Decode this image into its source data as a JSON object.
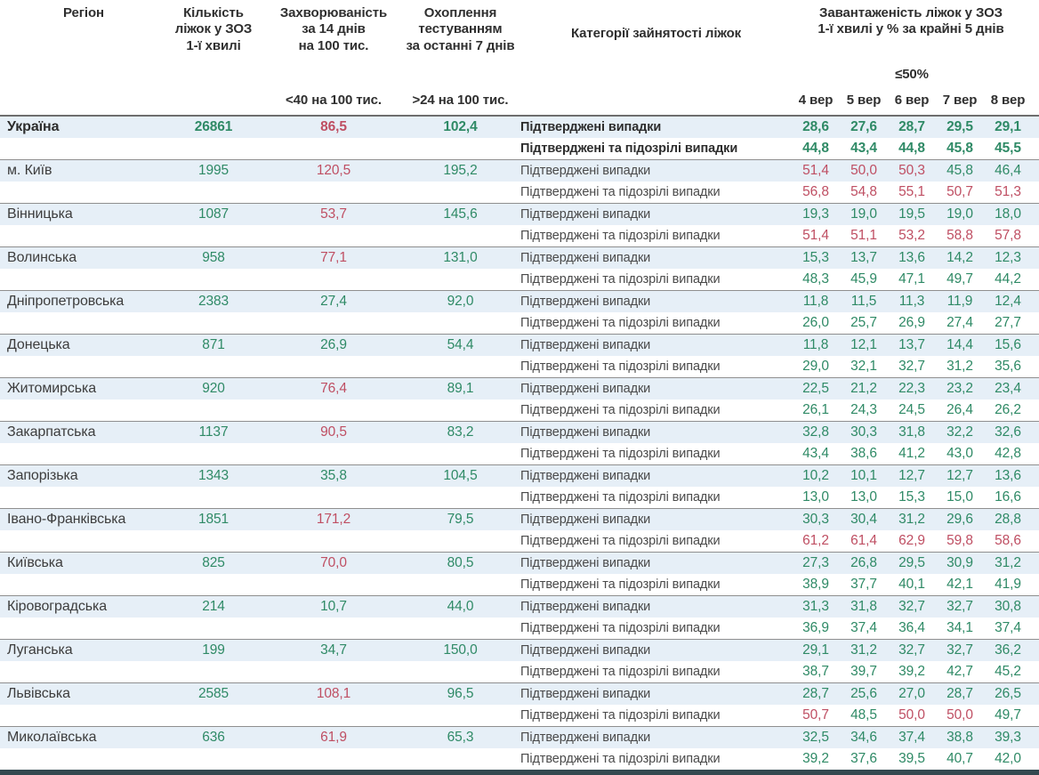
{
  "header": {
    "region": "Регіон",
    "beds": "Кількість\nліжок у ЗОЗ\n1-ї хвилі",
    "incidence": "Захворюваність\nза 14 днів\nна 100 тис.",
    "testing": "Охоплення\nтестуванням\nза останні 7 днів",
    "category": "Категорії зайнятості ліжок",
    "occupancy": "Завантаженість ліжок у ЗОЗ\n1-ї хвилі у % за крайні 5 днів",
    "incidence_limit": "<40 на 100 тис.",
    "testing_limit": ">24 на 100 тис.",
    "occupancy_limit": "≤50%"
  },
  "colors": {
    "good": "#2f8a66",
    "bad": "#bf4f63",
    "row_highlight": "#e6eff7",
    "bottom_bar": "#33484f"
  },
  "chart_data": {
    "type": "table",
    "title": "Завантаженість ліжок у ЗОЗ 1-ї хвилі у % за крайні 5 днів",
    "date_columns": [
      "4 вер",
      "5 вер",
      "6 вер",
      "7 вер",
      "8 вер"
    ],
    "category_labels": [
      "Підтверджені випадки",
      "Підтверджені та підозрілі випадки"
    ],
    "rows": [
      {
        "region": "Україна",
        "bold": true,
        "beds": "26861",
        "incidence": "86,5",
        "incidence_status": "r",
        "testing": "102,4",
        "confirmed": [
          "28,6",
          "27,6",
          "28,7",
          "29,5",
          "29,1"
        ],
        "confirmed_status": [
          "g",
          "g",
          "g",
          "g",
          "g"
        ],
        "both": [
          "44,8",
          "43,4",
          "44,8",
          "45,8",
          "45,5"
        ],
        "both_status": [
          "g",
          "g",
          "g",
          "g",
          "g"
        ]
      },
      {
        "region": "м. Київ",
        "bold": false,
        "beds": "1995",
        "incidence": "120,5",
        "incidence_status": "r",
        "testing": "195,2",
        "confirmed": [
          "51,4",
          "50,0",
          "50,3",
          "45,8",
          "46,4"
        ],
        "confirmed_status": [
          "r",
          "r",
          "r",
          "g",
          "g"
        ],
        "both": [
          "56,8",
          "54,8",
          "55,1",
          "50,7",
          "51,3"
        ],
        "both_status": [
          "r",
          "r",
          "r",
          "r",
          "r"
        ]
      },
      {
        "region": "Вінницька",
        "bold": false,
        "beds": "1087",
        "incidence": "53,7",
        "incidence_status": "r",
        "testing": "145,6",
        "confirmed": [
          "19,3",
          "19,0",
          "19,5",
          "19,0",
          "18,0"
        ],
        "confirmed_status": [
          "g",
          "g",
          "g",
          "g",
          "g"
        ],
        "both": [
          "51,4",
          "51,1",
          "53,2",
          "58,8",
          "57,8"
        ],
        "both_status": [
          "r",
          "r",
          "r",
          "r",
          "r"
        ]
      },
      {
        "region": "Волинська",
        "bold": false,
        "beds": "958",
        "incidence": "77,1",
        "incidence_status": "r",
        "testing": "131,0",
        "confirmed": [
          "15,3",
          "13,7",
          "13,6",
          "14,2",
          "12,3"
        ],
        "confirmed_status": [
          "g",
          "g",
          "g",
          "g",
          "g"
        ],
        "both": [
          "48,3",
          "45,9",
          "47,1",
          "49,7",
          "44,2"
        ],
        "both_status": [
          "g",
          "g",
          "g",
          "g",
          "g"
        ]
      },
      {
        "region": "Дніпропетровська",
        "bold": false,
        "beds": "2383",
        "incidence": "27,4",
        "incidence_status": "g",
        "testing": "92,0",
        "confirmed": [
          "11,8",
          "11,5",
          "11,3",
          "11,9",
          "12,4"
        ],
        "confirmed_status": [
          "g",
          "g",
          "g",
          "g",
          "g"
        ],
        "both": [
          "26,0",
          "25,7",
          "26,9",
          "27,4",
          "27,7"
        ],
        "both_status": [
          "g",
          "g",
          "g",
          "g",
          "g"
        ]
      },
      {
        "region": "Донецька",
        "bold": false,
        "beds": "871",
        "incidence": "26,9",
        "incidence_status": "g",
        "testing": "54,4",
        "confirmed": [
          "11,8",
          "12,1",
          "13,7",
          "14,4",
          "15,6"
        ],
        "confirmed_status": [
          "g",
          "g",
          "g",
          "g",
          "g"
        ],
        "both": [
          "29,0",
          "32,1",
          "32,7",
          "31,2",
          "35,6"
        ],
        "both_status": [
          "g",
          "g",
          "g",
          "g",
          "g"
        ]
      },
      {
        "region": "Житомирська",
        "bold": false,
        "beds": "920",
        "incidence": "76,4",
        "incidence_status": "r",
        "testing": "89,1",
        "confirmed": [
          "22,5",
          "21,2",
          "22,3",
          "23,2",
          "23,4"
        ],
        "confirmed_status": [
          "g",
          "g",
          "g",
          "g",
          "g"
        ],
        "both": [
          "26,1",
          "24,3",
          "24,5",
          "26,4",
          "26,2"
        ],
        "both_status": [
          "g",
          "g",
          "g",
          "g",
          "g"
        ]
      },
      {
        "region": "Закарпатська",
        "bold": false,
        "beds": "1137",
        "incidence": "90,5",
        "incidence_status": "r",
        "testing": "83,2",
        "confirmed": [
          "32,8",
          "30,3",
          "31,8",
          "32,2",
          "32,6"
        ],
        "confirmed_status": [
          "g",
          "g",
          "g",
          "g",
          "g"
        ],
        "both": [
          "43,4",
          "38,6",
          "41,2",
          "43,0",
          "42,8"
        ],
        "both_status": [
          "g",
          "g",
          "g",
          "g",
          "g"
        ]
      },
      {
        "region": "Запорізька",
        "bold": false,
        "beds": "1343",
        "incidence": "35,8",
        "incidence_status": "g",
        "testing": "104,5",
        "confirmed": [
          "10,2",
          "10,1",
          "12,7",
          "12,7",
          "13,6"
        ],
        "confirmed_status": [
          "g",
          "g",
          "g",
          "g",
          "g"
        ],
        "both": [
          "13,0",
          "13,0",
          "15,3",
          "15,0",
          "16,6"
        ],
        "both_status": [
          "g",
          "g",
          "g",
          "g",
          "g"
        ]
      },
      {
        "region": "Івано-Франківська",
        "bold": false,
        "beds": "1851",
        "incidence": "171,2",
        "incidence_status": "r",
        "testing": "79,5",
        "confirmed": [
          "30,3",
          "30,4",
          "31,2",
          "29,6",
          "28,8"
        ],
        "confirmed_status": [
          "g",
          "g",
          "g",
          "g",
          "g"
        ],
        "both": [
          "61,2",
          "61,4",
          "62,9",
          "59,8",
          "58,6"
        ],
        "both_status": [
          "r",
          "r",
          "r",
          "r",
          "r"
        ]
      },
      {
        "region": "Київська",
        "bold": false,
        "beds": "825",
        "incidence": "70,0",
        "incidence_status": "r",
        "testing": "80,5",
        "confirmed": [
          "27,3",
          "26,8",
          "29,5",
          "30,9",
          "31,2"
        ],
        "confirmed_status": [
          "g",
          "g",
          "g",
          "g",
          "g"
        ],
        "both": [
          "38,9",
          "37,7",
          "40,1",
          "42,1",
          "41,9"
        ],
        "both_status": [
          "g",
          "g",
          "g",
          "g",
          "g"
        ]
      },
      {
        "region": "Кіровоградська",
        "bold": false,
        "beds": "214",
        "incidence": "10,7",
        "incidence_status": "g",
        "testing": "44,0",
        "confirmed": [
          "31,3",
          "31,8",
          "32,7",
          "32,7",
          "30,8"
        ],
        "confirmed_status": [
          "g",
          "g",
          "g",
          "g",
          "g"
        ],
        "both": [
          "36,9",
          "37,4",
          "36,4",
          "34,1",
          "37,4"
        ],
        "both_status": [
          "g",
          "g",
          "g",
          "g",
          "g"
        ]
      },
      {
        "region": "Луганська",
        "bold": false,
        "beds": "199",
        "incidence": "34,7",
        "incidence_status": "g",
        "testing": "150,0",
        "confirmed": [
          "29,1",
          "31,2",
          "32,7",
          "32,7",
          "36,2"
        ],
        "confirmed_status": [
          "g",
          "g",
          "g",
          "g",
          "g"
        ],
        "both": [
          "38,7",
          "39,7",
          "39,2",
          "42,7",
          "45,2"
        ],
        "both_status": [
          "g",
          "g",
          "g",
          "g",
          "g"
        ]
      },
      {
        "region": "Львівська",
        "bold": false,
        "beds": "2585",
        "incidence": "108,1",
        "incidence_status": "r",
        "testing": "96,5",
        "confirmed": [
          "28,7",
          "25,6",
          "27,0",
          "28,7",
          "26,5"
        ],
        "confirmed_status": [
          "g",
          "g",
          "g",
          "g",
          "g"
        ],
        "both": [
          "50,7",
          "48,5",
          "50,0",
          "50,0",
          "49,7"
        ],
        "both_status": [
          "r",
          "g",
          "r",
          "r",
          "g"
        ]
      },
      {
        "region": "Миколаївська",
        "bold": false,
        "beds": "636",
        "incidence": "61,9",
        "incidence_status": "r",
        "testing": "65,3",
        "confirmed": [
          "32,5",
          "34,6",
          "37,4",
          "38,8",
          "39,3"
        ],
        "confirmed_status": [
          "g",
          "g",
          "g",
          "g",
          "g"
        ],
        "both": [
          "39,2",
          "37,6",
          "39,5",
          "40,7",
          "42,0"
        ],
        "both_status": [
          "g",
          "g",
          "g",
          "g",
          "g"
        ]
      }
    ]
  }
}
